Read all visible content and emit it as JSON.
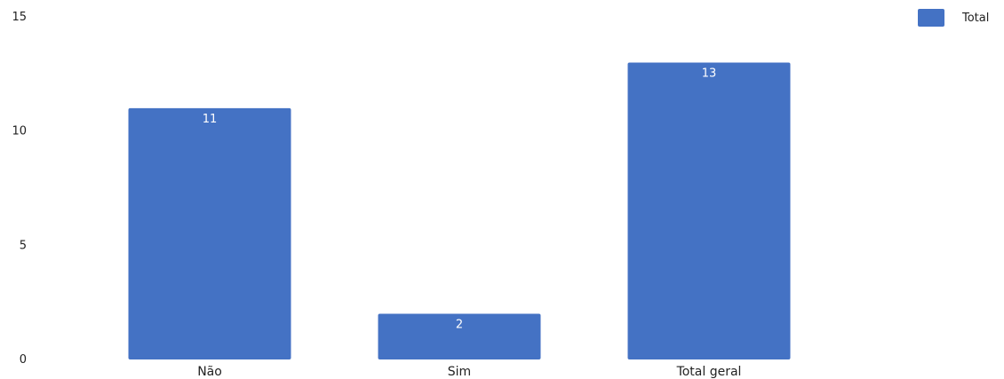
{
  "chart_data": {
    "type": "bar",
    "categories": [
      "Não",
      "Sim",
      "Total geral"
    ],
    "series": [
      {
        "name": "Total",
        "values": [
          11,
          2,
          13
        ],
        "color": "#4472C4"
      }
    ],
    "y_ticks": [
      "0",
      "5",
      "10",
      "15"
    ],
    "ylim": [
      0,
      15
    ],
    "data_labels": [
      "11",
      "2",
      "13"
    ],
    "legend": {
      "placement": "top-right",
      "labels": [
        "Total"
      ]
    },
    "title": "",
    "xlabel": "",
    "ylabel": "",
    "grid": false
  }
}
